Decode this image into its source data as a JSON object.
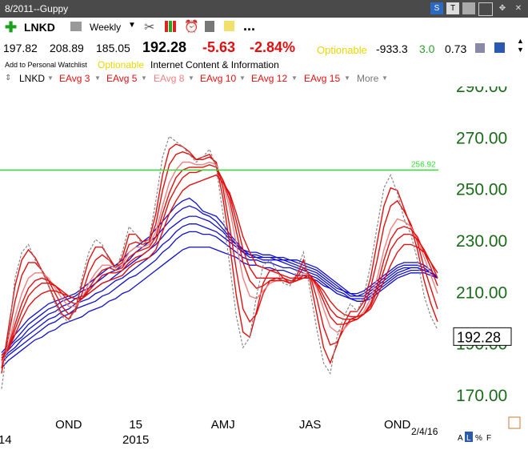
{
  "window": {
    "title": "8/2011--Guppy"
  },
  "toolbar": {
    "symbol": "LNKD",
    "period": "Weekly",
    "more": "..."
  },
  "quote": {
    "v1": "197.82",
    "v2": "208.89",
    "v3": "185.05",
    "last": "192.28",
    "change": "-5.63",
    "pct": "-2.84%",
    "optionable": "Optionable",
    "n1": "-933.3",
    "n2": "3.0",
    "n3": "0.73"
  },
  "sub": {
    "watchlist": "Add to Personal Watchlist",
    "optionable": "Optionable",
    "industry": "Internet Content & Information"
  },
  "legend": {
    "items": [
      "LNKD",
      "EAvg 3",
      "EAvg 5",
      "EAvg 8",
      "EAvg 10",
      "EAvg 12",
      "EAvg 15",
      "More"
    ]
  },
  "colors": {
    "price": "#888888",
    "short": "#e01010",
    "light": "#f08080",
    "long": "#1010d0",
    "hline": "#33dd33",
    "axis": "#1a6b1a"
  },
  "chart_data": {
    "type": "line",
    "ylim": [
      163,
      298
    ],
    "yticks": [
      170,
      190,
      210,
      230,
      250,
      270,
      290
    ],
    "ytick_labels": [
      "170.00",
      "190.00",
      "210.00",
      "230.00",
      "250.00",
      "270.00",
      "290.00"
    ],
    "xticks": [
      {
        "label": "OND",
        "week": 10
      },
      {
        "label": "15",
        "week": 20
      },
      {
        "label": "AMJ",
        "week": 33
      },
      {
        "label": "JAS",
        "week": 46
      },
      {
        "label": "OND",
        "week": 59
      }
    ],
    "year_labels": [
      {
        "label": "14",
        "week": 0.5
      },
      {
        "label": "2015",
        "week": 20
      }
    ],
    "date_label": "2/4/16",
    "last_price": "192.28",
    "hline": {
      "value": 256.92,
      "label": "256.92"
    },
    "price": [
      172,
      192,
      215,
      225,
      228,
      222,
      218,
      212,
      205,
      200,
      198,
      203,
      215,
      225,
      230,
      228,
      222,
      218,
      225,
      235,
      232,
      228,
      230,
      245,
      262,
      270,
      268,
      266,
      263,
      260,
      262,
      265,
      258,
      240,
      220,
      200,
      188,
      192,
      208,
      220,
      222,
      218,
      213,
      212,
      218,
      225,
      210,
      195,
      182,
      178,
      192,
      200,
      205,
      202,
      208,
      220,
      235,
      250,
      255,
      248,
      238,
      232,
      222,
      208,
      200,
      195
    ],
    "ema_short": [
      {
        "name": "EAvg 3",
        "color": "#e01010",
        "values": [
          178,
          195,
          212,
          222,
          226,
          223,
          218,
          212,
          206,
          201,
          199,
          203,
          213,
          222,
          227,
          227,
          223,
          219,
          223,
          232,
          232,
          229,
          230,
          240,
          255,
          265,
          267,
          266,
          264,
          261,
          262,
          263,
          259,
          246,
          228,
          208,
          194,
          192,
          202,
          213,
          218,
          218,
          215,
          213,
          216,
          222,
          214,
          201,
          188,
          182,
          189,
          197,
          202,
          202,
          206,
          215,
          229,
          243,
          250,
          249,
          242,
          235,
          226,
          214,
          205,
          198
        ]
      },
      {
        "name": "EAvg 5",
        "color": "#e01010",
        "values": [
          180,
          192,
          206,
          216,
          221,
          221,
          218,
          214,
          209,
          204,
          201,
          202,
          209,
          217,
          222,
          224,
          222,
          219,
          221,
          228,
          229,
          228,
          229,
          236,
          249,
          259,
          263,
          264,
          263,
          261,
          261,
          262,
          260,
          250,
          235,
          218,
          203,
          198,
          201,
          209,
          214,
          215,
          214,
          213,
          215,
          219,
          216,
          207,
          196,
          189,
          190,
          195,
          199,
          200,
          204,
          211,
          222,
          235,
          243,
          245,
          241,
          236,
          229,
          219,
          211,
          203
        ]
      },
      {
        "name": "EAvg 8",
        "color": "#f08080",
        "values": [
          182,
          189,
          200,
          209,
          215,
          217,
          217,
          215,
          211,
          207,
          204,
          204,
          207,
          213,
          217,
          220,
          220,
          219,
          220,
          225,
          227,
          227,
          228,
          233,
          243,
          252,
          257,
          260,
          260,
          259,
          259,
          260,
          259,
          252,
          242,
          228,
          215,
          208,
          207,
          210,
          213,
          214,
          214,
          213,
          214,
          217,
          216,
          211,
          203,
          196,
          194,
          195,
          198,
          199,
          202,
          207,
          215,
          226,
          234,
          238,
          237,
          235,
          230,
          223,
          216,
          209
        ]
      },
      {
        "name": "EAvg 10",
        "color": "#e01010",
        "values": [
          183,
          188,
          197,
          205,
          211,
          214,
          215,
          214,
          212,
          209,
          206,
          205,
          207,
          211,
          215,
          218,
          219,
          218,
          219,
          223,
          225,
          226,
          227,
          231,
          240,
          248,
          254,
          257,
          258,
          258,
          258,
          259,
          258,
          253,
          245,
          233,
          221,
          214,
          211,
          212,
          214,
          214,
          214,
          213,
          214,
          216,
          216,
          212,
          206,
          200,
          197,
          197,
          198,
          199,
          201,
          205,
          212,
          222,
          230,
          234,
          235,
          234,
          231,
          225,
          219,
          212
        ]
      },
      {
        "name": "EAvg 12",
        "color": "#e01010",
        "values": [
          184,
          187,
          195,
          202,
          208,
          211,
          213,
          213,
          212,
          210,
          208,
          207,
          207,
          210,
          213,
          216,
          217,
          217,
          218,
          221,
          223,
          224,
          226,
          229,
          237,
          245,
          250,
          254,
          256,
          256,
          257,
          257,
          257,
          253,
          247,
          237,
          226,
          219,
          215,
          215,
          215,
          215,
          215,
          214,
          214,
          215,
          216,
          213,
          208,
          203,
          200,
          199,
          199,
          199,
          201,
          204,
          210,
          218,
          226,
          230,
          232,
          232,
          230,
          226,
          221,
          215
        ]
      },
      {
        "name": "EAvg 15",
        "color": "#e01010",
        "values": [
          185,
          187,
          193,
          199,
          204,
          207,
          209,
          210,
          210,
          209,
          208,
          207,
          207,
          209,
          211,
          213,
          214,
          215,
          216,
          219,
          221,
          222,
          223,
          226,
          233,
          240,
          245,
          249,
          251,
          252,
          253,
          254,
          255,
          252,
          248,
          240,
          231,
          225,
          220,
          219,
          218,
          217,
          216,
          215,
          215,
          215,
          215,
          213,
          210,
          206,
          203,
          201,
          200,
          200,
          201,
          203,
          208,
          214,
          220,
          225,
          228,
          228,
          227,
          225,
          221,
          217
        ]
      }
    ],
    "ema_long": [
      {
        "name": "EAvg 30",
        "values": [
          186,
          189,
          193,
          196,
          199,
          201,
          203,
          205,
          206,
          207,
          208,
          209,
          211,
          213,
          215,
          217,
          219,
          220,
          222,
          225,
          227,
          229,
          231,
          234,
          237,
          240,
          243,
          245,
          246,
          244,
          241,
          240,
          239,
          236,
          232,
          229,
          226,
          225,
          225,
          224,
          224,
          223,
          223,
          222,
          222,
          221,
          220,
          219,
          217,
          215,
          213,
          211,
          209,
          209,
          210,
          212,
          214,
          216,
          218,
          220,
          221,
          221,
          221,
          220,
          218,
          215
        ]
      },
      {
        "name": "EAvg 35",
        "values": [
          185,
          188,
          191,
          194,
          197,
          199,
          201,
          203,
          204,
          206,
          207,
          208,
          210,
          211,
          213,
          215,
          217,
          218,
          220,
          222,
          225,
          227,
          229,
          231,
          234,
          237,
          240,
          242,
          243,
          242,
          240,
          239,
          237,
          234,
          231,
          228,
          226,
          224,
          224,
          223,
          223,
          223,
          222,
          222,
          221,
          220,
          219,
          218,
          216,
          214,
          212,
          210,
          209,
          208,
          209,
          211,
          213,
          215,
          217,
          219,
          220,
          220,
          220,
          219,
          217,
          215
        ]
      },
      {
        "name": "EAvg 40",
        "values": [
          184,
          187,
          190,
          192,
          195,
          197,
          199,
          201,
          202,
          204,
          205,
          207,
          208,
          209,
          211,
          213,
          214,
          216,
          218,
          220,
          222,
          224,
          226,
          228,
          231,
          234,
          236,
          238,
          239,
          239,
          238,
          237,
          235,
          233,
          230,
          228,
          225,
          224,
          223,
          223,
          223,
          222,
          222,
          221,
          220,
          219,
          218,
          217,
          215,
          213,
          211,
          210,
          208,
          208,
          208,
          210,
          212,
          214,
          216,
          218,
          219,
          219,
          219,
          218,
          217,
          215
        ]
      },
      {
        "name": "EAvg 45",
        "values": [
          183,
          186,
          188,
          191,
          193,
          195,
          197,
          199,
          200,
          202,
          203,
          205,
          206,
          207,
          209,
          210,
          212,
          214,
          215,
          217,
          219,
          221,
          223,
          225,
          228,
          230,
          233,
          235,
          236,
          236,
          235,
          234,
          233,
          231,
          229,
          227,
          225,
          223,
          223,
          222,
          222,
          222,
          221,
          220,
          219,
          218,
          217,
          216,
          214,
          212,
          210,
          209,
          207,
          207,
          207,
          209,
          211,
          213,
          215,
          217,
          218,
          219,
          219,
          218,
          217,
          215
        ]
      },
      {
        "name": "EAvg 50",
        "values": [
          182,
          185,
          187,
          189,
          191,
          193,
          195,
          197,
          198,
          200,
          201,
          203,
          204,
          205,
          206,
          208,
          209,
          211,
          213,
          215,
          216,
          218,
          220,
          222,
          225,
          227,
          230,
          232,
          233,
          233,
          232,
          232,
          231,
          229,
          227,
          225,
          223,
          222,
          222,
          221,
          221,
          220,
          219,
          219,
          218,
          217,
          216,
          215,
          213,
          211,
          209,
          208,
          207,
          206,
          206,
          208,
          210,
          212,
          214,
          216,
          217,
          218,
          218,
          218,
          217,
          215
        ]
      },
      {
        "name": "EAvg 60",
        "values": [
          180,
          183,
          185,
          187,
          189,
          191,
          192,
          194,
          195,
          197,
          198,
          199,
          200,
          202,
          203,
          204,
          206,
          207,
          209,
          210,
          212,
          214,
          216,
          218,
          220,
          222,
          224,
          226,
          227,
          227,
          227,
          227,
          226,
          225,
          224,
          223,
          221,
          220,
          220,
          219,
          219,
          218,
          218,
          217,
          216,
          216,
          215,
          214,
          212,
          211,
          209,
          208,
          207,
          206,
          206,
          207,
          209,
          211,
          213,
          215,
          216,
          217,
          217,
          217,
          216,
          215
        ]
      }
    ]
  }
}
